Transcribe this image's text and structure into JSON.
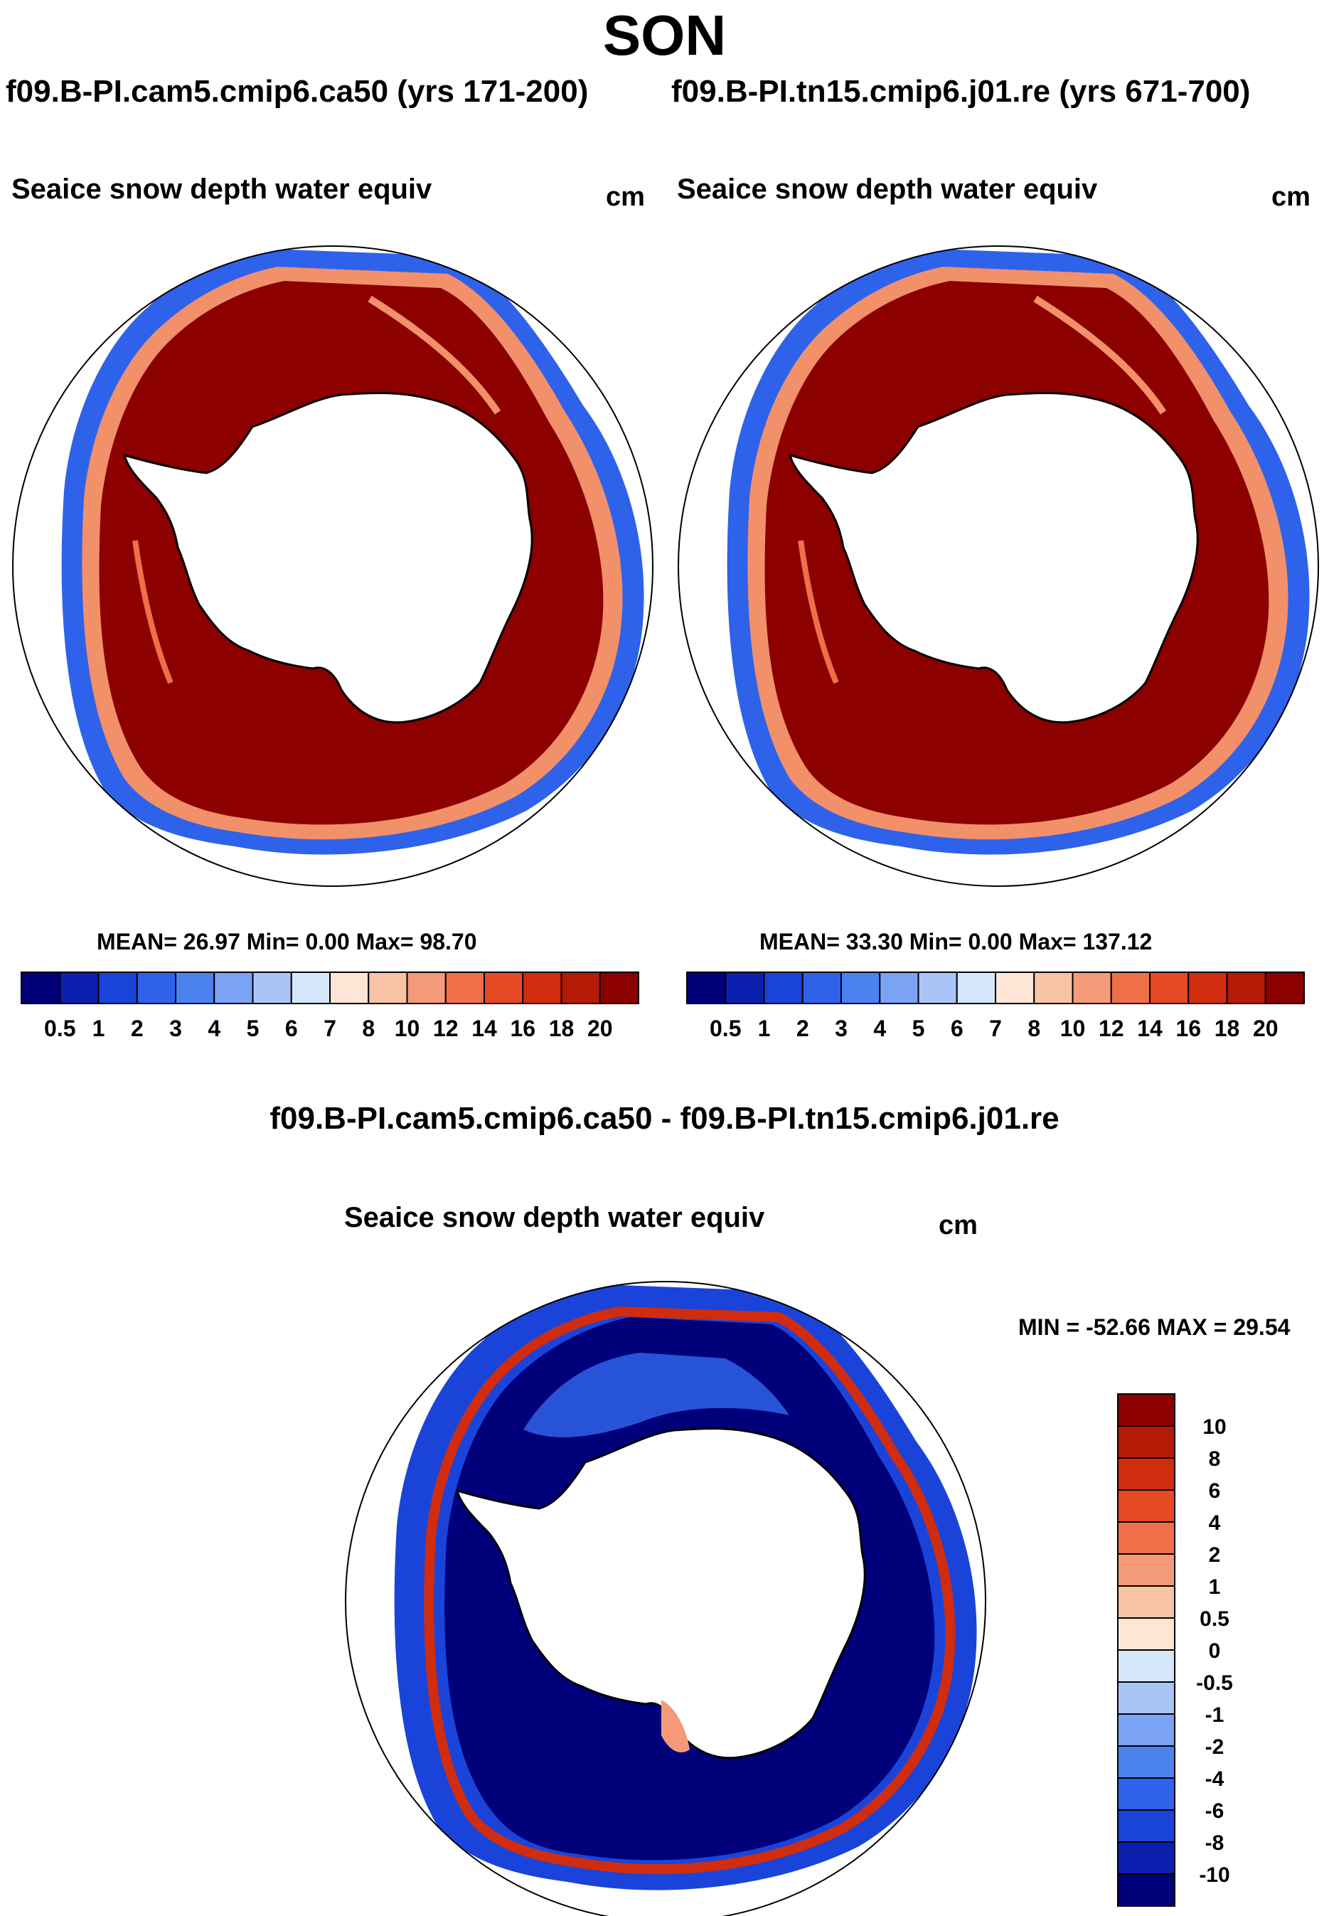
{
  "figure": {
    "title": "SON",
    "colors": {
      "ocean": "#ffffff",
      "land": "#ffffff",
      "outline": "#000000"
    }
  },
  "panels": [
    {
      "id": "case1",
      "case_title": "f09.B-PI.cam5.cmip6.ca50 (yrs 171-200)",
      "field": "Seaice snow depth water equiv",
      "units": "cm",
      "stats": "MEAN=  26.97  Min=    0.00  Max=  98.70",
      "colorbar": {
        "orientation": "horizontal",
        "labels": [
          "0.5",
          "1",
          "2",
          "3",
          "4",
          "5",
          "6",
          "7",
          "8",
          "10",
          "12",
          "14",
          "16",
          "18",
          "20"
        ],
        "colors": [
          "#00007a",
          "#0a1fad",
          "#1a44d9",
          "#2e62ea",
          "#4c82f0",
          "#7aa2f5",
          "#a9c5f8",
          "#d6e6fb",
          "#fde6d6",
          "#f9c3a6",
          "#f59a78",
          "#ef6f48",
          "#e54a24",
          "#d12c0e",
          "#b51a06",
          "#8c0000"
        ]
      }
    },
    {
      "id": "case2",
      "case_title": "f09.B-PI.tn15.cmip6.j01.re (yrs 671-700)",
      "field": "Seaice snow depth water equiv",
      "units": "cm",
      "stats": "MEAN=  33.30  Min=    0.00  Max= 137.12",
      "colorbar": {
        "orientation": "horizontal",
        "labels": [
          "0.5",
          "1",
          "2",
          "3",
          "4",
          "5",
          "6",
          "7",
          "8",
          "10",
          "12",
          "14",
          "16",
          "18",
          "20"
        ],
        "colors": [
          "#00007a",
          "#0a1fad",
          "#1a44d9",
          "#2e62ea",
          "#4c82f0",
          "#7aa2f5",
          "#a9c5f8",
          "#d6e6fb",
          "#fde6d6",
          "#f9c3a6",
          "#f59a78",
          "#ef6f48",
          "#e54a24",
          "#d12c0e",
          "#b51a06",
          "#8c0000"
        ]
      }
    }
  ],
  "difference": {
    "title": "f09.B-PI.cam5.cmip6.ca50 - f09.B-PI.tn15.cmip6.j01.re",
    "field": "Seaice snow depth water equiv",
    "units": "cm",
    "stats": "MIN = -52.66 MAX =  29.54",
    "colorbar": {
      "orientation": "vertical",
      "labels": [
        "10",
        "8",
        "6",
        "4",
        "2",
        "1",
        "0.5",
        "0",
        "-0.5",
        "-1",
        "-2",
        "-4",
        "-6",
        "-8",
        "-10"
      ],
      "colors": [
        "#8c0000",
        "#b51a06",
        "#d12c0e",
        "#e54a24",
        "#ef6f48",
        "#f59a78",
        "#f9c3a6",
        "#fde6d6",
        "#d6e6fb",
        "#a9c5f8",
        "#7aa2f5",
        "#4c82f0",
        "#2e62ea",
        "#1a44d9",
        "#0a1fad",
        "#00007a"
      ]
    }
  }
}
